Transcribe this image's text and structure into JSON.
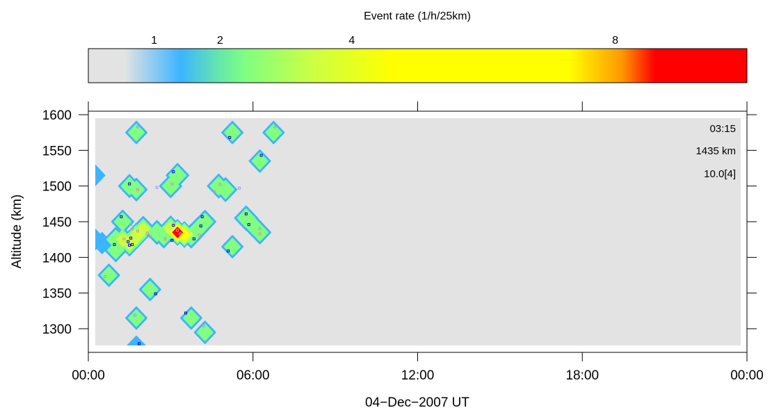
{
  "chart_data": {
    "type": "heatmap",
    "colorbar": {
      "title": "Event rate (1/h/25km)",
      "ticks": [
        1,
        2,
        4,
        8
      ],
      "stops": [
        {
          "value": 0.0,
          "color": "#e3e3e3"
        },
        {
          "value": 0.55,
          "color": "#e3e3e3"
        },
        {
          "value": 1.4,
          "color": "#3cb4ff"
        },
        {
          "value": 2.0,
          "color": "#66e8aa"
        },
        {
          "value": 2.4,
          "color": "#80ff80"
        },
        {
          "value": 3.4,
          "color": "#ccff44"
        },
        {
          "value": 4.6,
          "color": "#ffff00"
        },
        {
          "value": 7.3,
          "color": "#ffff00"
        },
        {
          "value": 8.1,
          "color": "#ff9900"
        },
        {
          "value": 8.6,
          "color": "#ff0000"
        },
        {
          "value": 10.0,
          "color": "#ff0000"
        }
      ]
    },
    "xlabel": "04−Dec−2007 UT",
    "ylabel": "Altitude (km)",
    "xlim": [
      0,
      24
    ],
    "ylim": [
      1264,
      1606
    ],
    "x_ticks": [
      0,
      6,
      12,
      18,
      24
    ],
    "x_tick_labels": [
      "00:00",
      "06:00",
      "12:00",
      "18:00",
      "00:00"
    ],
    "y_ticks": [
      1300,
      1350,
      1400,
      1450,
      1500,
      1550,
      1600
    ],
    "background_color": "#e3e3e3",
    "annotations": [
      "03:15",
      "1435 km",
      "10.0[4]"
    ],
    "cells": [
      {
        "t": 1.75,
        "alt": 1575,
        "rate": 2.1
      },
      {
        "t": 5.25,
        "alt": 1575,
        "rate": 2.1
      },
      {
        "t": 6.75,
        "alt": 1575,
        "rate": 2.1
      },
      {
        "t": 6.25,
        "alt": 1535,
        "rate": 2.1
      },
      {
        "t": 3.25,
        "alt": 1515,
        "rate": 2.6
      },
      {
        "t": 3.0,
        "alt": 1500,
        "rate": 2.4
      },
      {
        "t": 1.5,
        "alt": 1500,
        "rate": 2.3
      },
      {
        "t": 1.75,
        "alt": 1495,
        "rate": 2.2
      },
      {
        "t": 4.75,
        "alt": 1500,
        "rate": 2.6
      },
      {
        "t": 5.0,
        "alt": 1495,
        "rate": 2.6
      },
      {
        "t": 5.75,
        "alt": 1455,
        "rate": 2.8
      },
      {
        "t": 6.0,
        "alt": 1445,
        "rate": 2.4
      },
      {
        "t": 6.25,
        "alt": 1435,
        "rate": 2.3
      },
      {
        "t": 0.25,
        "alt": 1515,
        "rate": 1.4
      },
      {
        "t": 1.25,
        "alt": 1450,
        "rate": 2.4
      },
      {
        "t": 1.25,
        "alt": 1425,
        "rate": 3.2
      },
      {
        "t": 1.5,
        "alt": 1420,
        "rate": 3.6
      },
      {
        "t": 1.75,
        "alt": 1430,
        "rate": 3.8
      },
      {
        "t": 2.0,
        "alt": 1440,
        "rate": 3.0
      },
      {
        "t": 1.0,
        "alt": 1425,
        "rate": 2.8
      },
      {
        "t": 1.0,
        "alt": 1410,
        "rate": 2.3
      },
      {
        "t": 2.5,
        "alt": 1435,
        "rate": 2.6
      },
      {
        "t": 2.75,
        "alt": 1430,
        "rate": 2.6
      },
      {
        "t": 3.0,
        "alt": 1440,
        "rate": 3.4
      },
      {
        "t": 3.25,
        "alt": 1435,
        "rate": 10.0
      },
      {
        "t": 3.5,
        "alt": 1432,
        "rate": 4.8
      },
      {
        "t": 3.75,
        "alt": 1430,
        "rate": 2.6
      },
      {
        "t": 4.0,
        "alt": 1440,
        "rate": 2.4
      },
      {
        "t": 4.25,
        "alt": 1450,
        "rate": 2.2
      },
      {
        "t": 0.5,
        "alt": 1420,
        "rate": 1.6
      },
      {
        "t": 0.25,
        "alt": 1425,
        "rate": 1.5
      },
      {
        "t": 5.25,
        "alt": 1415,
        "rate": 2.1
      },
      {
        "t": 0.75,
        "alt": 1375,
        "rate": 2.1
      },
      {
        "t": 2.25,
        "alt": 1355,
        "rate": 2.1
      },
      {
        "t": 1.75,
        "alt": 1315,
        "rate": 2.1
      },
      {
        "t": 3.75,
        "alt": 1315,
        "rate": 2.1
      },
      {
        "t": 4.25,
        "alt": 1295,
        "rate": 2.1
      },
      {
        "t": 1.75,
        "alt": 1275,
        "rate": 1.6
      }
    ],
    "events": [
      {
        "t": 1.8,
        "alt": 1583,
        "color": "#9999ff"
      },
      {
        "t": 5.15,
        "alt": 1568,
        "color": "#0000cc"
      },
      {
        "t": 6.8,
        "alt": 1583,
        "color": "#9999ff"
      },
      {
        "t": 6.3,
        "alt": 1543,
        "color": "#0000cc"
      },
      {
        "t": 3.1,
        "alt": 1520,
        "color": "#0000cc"
      },
      {
        "t": 2.5,
        "alt": 1498,
        "color": "#9999ff"
      },
      {
        "t": 3.05,
        "alt": 1503,
        "color": "#cc9999"
      },
      {
        "t": 1.5,
        "alt": 1503,
        "color": "#0000cc"
      },
      {
        "t": 1.8,
        "alt": 1495,
        "color": "#cc9999"
      },
      {
        "t": 0.25,
        "alt": 1510,
        "color": "#9999ff"
      },
      {
        "t": 4.8,
        "alt": 1502,
        "color": "#cc9999"
      },
      {
        "t": 4.6,
        "alt": 1492,
        "color": "#cc9999"
      },
      {
        "t": 5.5,
        "alt": 1497,
        "color": "#9999ff"
      },
      {
        "t": 5.75,
        "alt": 1461,
        "color": "#0000cc"
      },
      {
        "t": 5.85,
        "alt": 1446,
        "color": "#0000cc"
      },
      {
        "t": 6.25,
        "alt": 1440,
        "color": "#cc9999"
      },
      {
        "t": 6.25,
        "alt": 1433,
        "color": "#cc9999"
      },
      {
        "t": 1.2,
        "alt": 1457,
        "color": "#0000cc"
      },
      {
        "t": 1.55,
        "alt": 1446,
        "color": "#cc9999"
      },
      {
        "t": 1.6,
        "alt": 1440,
        "color": "#cc9999"
      },
      {
        "t": 1.8,
        "alt": 1437,
        "color": "#cc9999"
      },
      {
        "t": 1.3,
        "alt": 1426,
        "color": "#cc9999"
      },
      {
        "t": 1.5,
        "alt": 1417,
        "color": "#0000cc"
      },
      {
        "t": 1.45,
        "alt": 1422,
        "color": "#0000cc"
      },
      {
        "t": 1.55,
        "alt": 1427,
        "color": "#0000cc"
      },
      {
        "t": 1.6,
        "alt": 1418,
        "color": "#0000cc"
      },
      {
        "t": 0.95,
        "alt": 1418,
        "color": "#0000cc"
      },
      {
        "t": 2.15,
        "alt": 1434,
        "color": "#cc9999"
      },
      {
        "t": 2.25,
        "alt": 1429,
        "color": "#cc9999"
      },
      {
        "t": 2.8,
        "alt": 1426,
        "color": "#cc9999"
      },
      {
        "t": 3.1,
        "alt": 1445,
        "color": "#0000cc"
      },
      {
        "t": 3.25,
        "alt": 1438,
        "color": "#cc9999"
      },
      {
        "t": 3.35,
        "alt": 1433,
        "color": "#cc9999"
      },
      {
        "t": 3.05,
        "alt": 1424,
        "color": "#0000cc"
      },
      {
        "t": 3.85,
        "alt": 1426,
        "color": "#0000cc"
      },
      {
        "t": 4.05,
        "alt": 1431,
        "color": "#cc9999"
      },
      {
        "t": 4.1,
        "alt": 1444,
        "color": "#0000cc"
      },
      {
        "t": 4.15,
        "alt": 1457,
        "color": "#0000cc"
      },
      {
        "t": 0.2,
        "alt": 1426,
        "color": "#0000cc"
      },
      {
        "t": 5.1,
        "alt": 1409,
        "color": "#0000cc"
      },
      {
        "t": 0.6,
        "alt": 1373,
        "color": "#cc9999"
      },
      {
        "t": 2.45,
        "alt": 1349,
        "color": "#0000cc"
      },
      {
        "t": 1.7,
        "alt": 1319,
        "color": "#9999ff"
      },
      {
        "t": 3.55,
        "alt": 1322,
        "color": "#0000cc"
      },
      {
        "t": 4.2,
        "alt": 1304,
        "color": "#9999ff"
      },
      {
        "t": 1.85,
        "alt": 1279,
        "color": "#0000cc"
      }
    ]
  }
}
